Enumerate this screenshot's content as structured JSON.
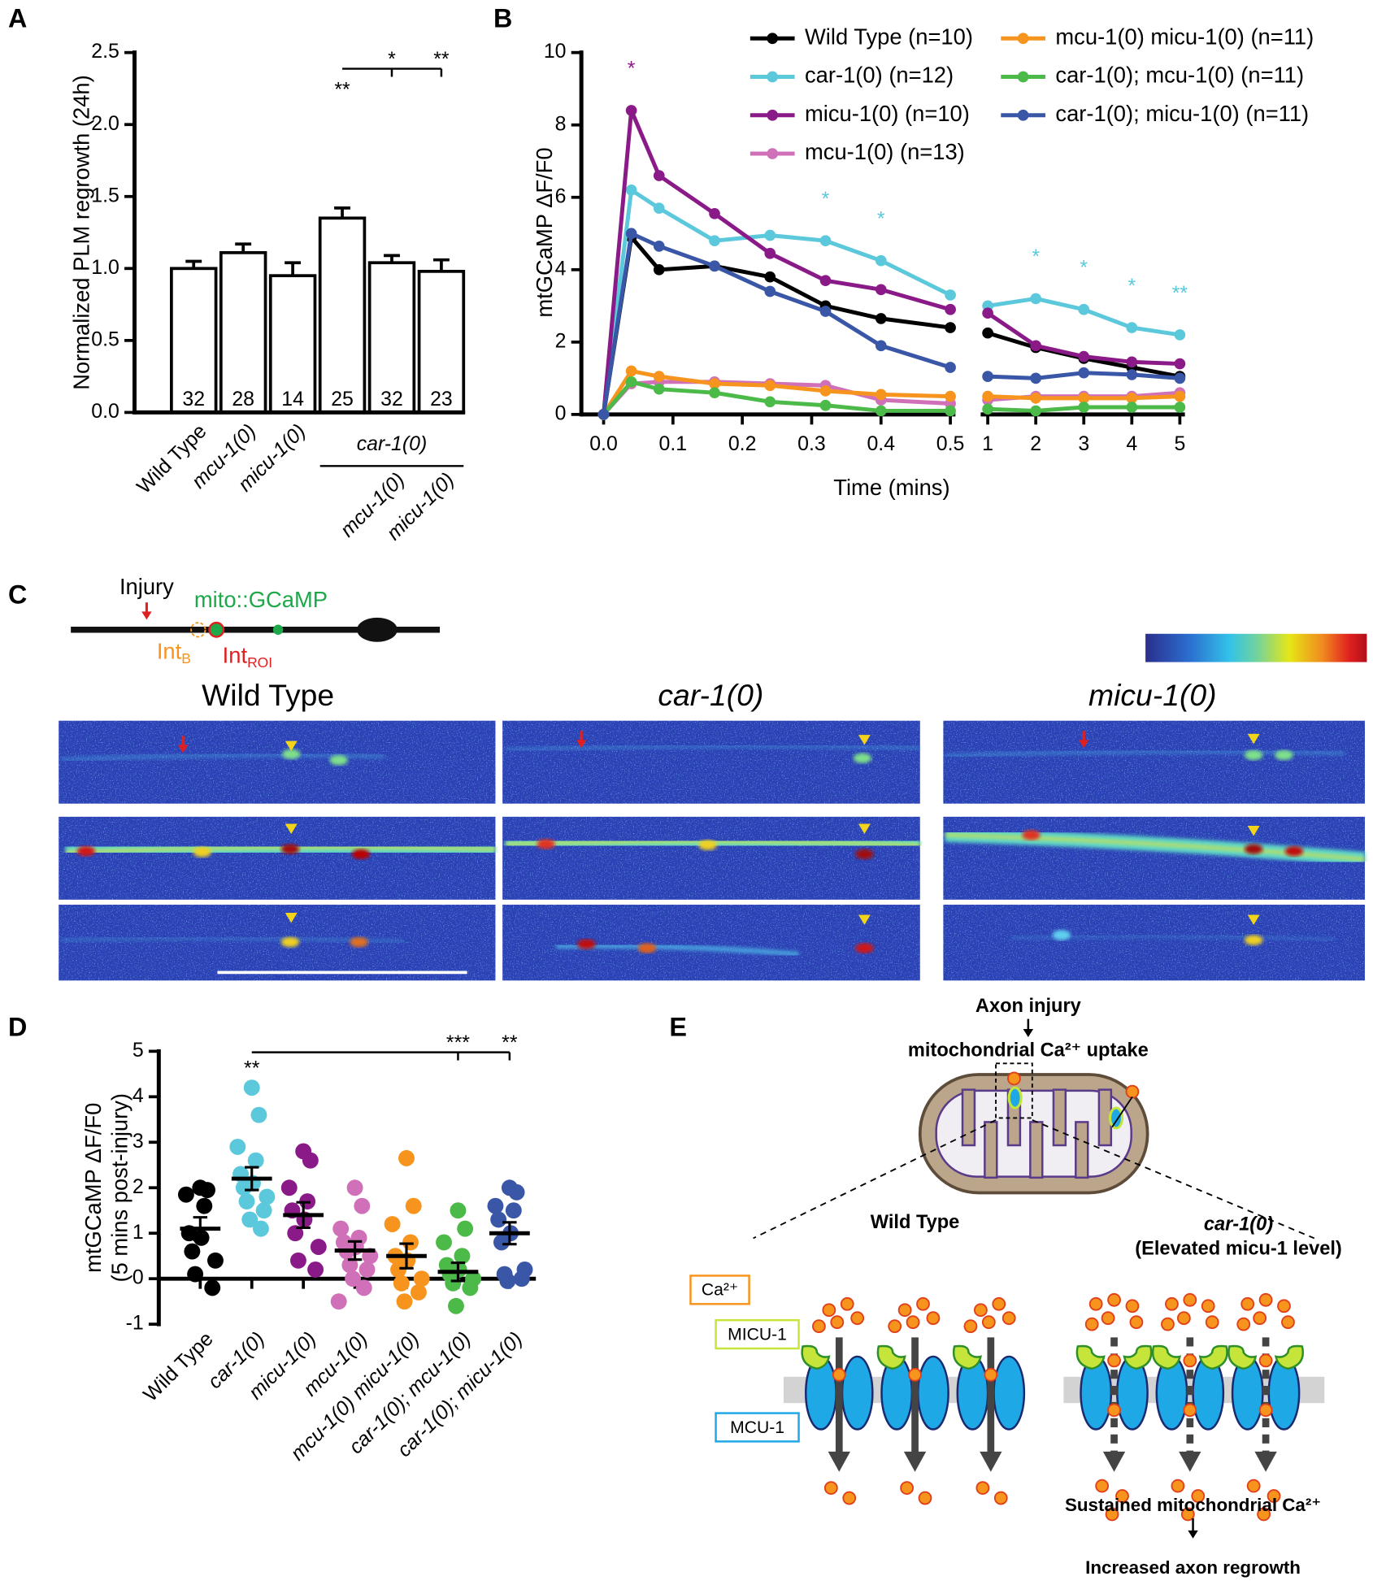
{
  "panel_labels": [
    "A",
    "B",
    "C",
    "D",
    "E"
  ],
  "chart_data": [
    {
      "type": "bar",
      "ylabel": "Normalized PLM regrowth (24h)",
      "categories": [
        "Wild Type",
        "mcu-1(0)",
        "micu-1(0)",
        null,
        "mcu-1(0)",
        "micu-1(0)"
      ],
      "group_label": "car-1(0)",
      "values": [
        1.0,
        1.11,
        0.95,
        1.35,
        1.04,
        0.98
      ],
      "errors": [
        0.05,
        0.06,
        0.09,
        0.07,
        0.05,
        0.08
      ],
      "counts": [
        32,
        28,
        14,
        25,
        32,
        23
      ],
      "stars": [
        null,
        null,
        null,
        "**",
        null,
        null
      ],
      "bracket_stars": [
        null,
        null,
        null,
        null,
        "*",
        "**"
      ],
      "color": "#ffffff",
      "ylim": [
        0,
        2.5
      ],
      "yticks": [
        {
          "value": 0,
          "label": "0.0"
        },
        0.5,
        {
          "value": 1,
          "label": "1.0"
        },
        1.5,
        {
          "value": 2,
          "label": "2.0"
        },
        2.5
      ]
    },
    {
      "type": "line",
      "xlabel": "Time (mins)",
      "ylabel": "mtGCaMP ΔF/F0",
      "x": [
        0,
        0.04,
        0.08,
        0.16,
        0.24,
        0.32,
        0.4,
        0.5,
        1,
        2,
        3,
        4,
        5
      ],
      "xlim": [
        0,
        0.5
      ],
      "x2lim": [
        1,
        5
      ],
      "xticks": [
        {
          "value": 0,
          "label": "0.0"
        },
        0.1,
        0.2,
        0.3,
        0.4,
        0.5,
        1,
        2,
        3,
        4,
        5
      ],
      "ylim": [
        0,
        10
      ],
      "yticks": [
        0,
        2,
        4,
        6,
        8,
        10
      ],
      "series": [
        {
          "name": "Wild Type (n=10)",
          "color": "#000000",
          "values": [
            0,
            4.9,
            4.0,
            4.1,
            3.8,
            3.0,
            2.65,
            2.4,
            2.25,
            1.85,
            1.55,
            1.3,
            1.05
          ]
        },
        {
          "name": "car-1(0) (n=12)",
          "color": "#5bc8dc",
          "values": [
            0,
            6.2,
            5.7,
            4.8,
            4.95,
            4.8,
            4.25,
            3.3,
            3.0,
            3.2,
            2.9,
            2.4,
            2.2
          ],
          "stars": [
            null,
            null,
            null,
            null,
            null,
            "*",
            "*",
            null,
            null,
            "*",
            "*",
            "*",
            "**"
          ]
        },
        {
          "name": "micu-1(0) (n=10)",
          "color": "#8b1a89",
          "values": [
            0,
            8.4,
            6.6,
            5.55,
            4.45,
            3.7,
            3.45,
            2.9,
            2.8,
            1.9,
            1.6,
            1.45,
            1.4
          ],
          "stars": [
            null,
            "*",
            null,
            null,
            null,
            null,
            null,
            null,
            null,
            null,
            null,
            null,
            null
          ]
        },
        {
          "name": "mcu-1(0) (n=13)",
          "color": "#d070b8",
          "values": [
            0,
            0.85,
            0.9,
            0.9,
            0.85,
            0.8,
            0.4,
            0.3,
            0.4,
            0.5,
            0.5,
            0.5,
            0.6
          ]
        },
        {
          "name": "mcu-1(0) micu-1(0) (n=11)",
          "color": "#f7941d",
          "values": [
            0,
            1.2,
            1.05,
            0.85,
            0.8,
            0.65,
            0.55,
            0.5,
            0.5,
            0.45,
            0.45,
            0.45,
            0.5
          ]
        },
        {
          "name": "car-1(0); mcu-1(0) (n=11)",
          "color": "#4cba49",
          "values": [
            0,
            0.9,
            0.7,
            0.6,
            0.35,
            0.25,
            0.1,
            0.1,
            0.15,
            0.1,
            0.2,
            0.2,
            0.2
          ]
        },
        {
          "name": "car-1(0); micu-1(0) (n=11)",
          "color": "#3a57a7",
          "values": [
            0,
            5.0,
            4.65,
            4.1,
            3.4,
            2.85,
            1.9,
            1.3,
            1.05,
            1.0,
            1.15,
            1.1,
            1.0
          ]
        }
      ]
    },
    {
      "type": "strip",
      "ylabel": "mtGCaMP ΔF/F0",
      "ylabel_note": "(5 mins post-injury)",
      "categories": [
        "Wild Type",
        "car-1(0)",
        "micu-1(0)",
        "mcu-1(0)",
        "mcu-1(0) micu-1(0)",
        "car-1(0); mcu-1(0)",
        "car-1(0); micu-1(0)"
      ],
      "colors": [
        "#000000",
        "#5bc8dc",
        "#8b1a89",
        "#d070b8",
        "#f7941d",
        "#4cba49",
        "#3a57a7"
      ],
      "points": [
        [
          2.0,
          1.95,
          1.85,
          1.6,
          1.0,
          0.9,
          0.6,
          0.4,
          0.1,
          -0.2
        ],
        [
          4.2,
          3.6,
          2.9,
          2.6,
          2.3,
          2.1,
          2.0,
          1.8,
          1.7,
          1.5,
          1.3,
          1.1
        ],
        [
          2.8,
          2.6,
          2.0,
          1.7,
          1.5,
          1.3,
          1.0,
          0.7,
          0.4,
          0.2
        ],
        [
          2.0,
          1.6,
          1.1,
          0.9,
          0.8,
          0.7,
          0.6,
          0.5,
          0.3,
          0.2,
          0,
          -0.2,
          -0.5
        ],
        [
          2.65,
          1.6,
          1.2,
          0.8,
          0.5,
          0.4,
          0.2,
          0,
          -0.1,
          -0.3,
          -0.5
        ],
        [
          1.5,
          1.1,
          0.8,
          0.5,
          0.3,
          0.2,
          0.1,
          0,
          -0.1,
          -0.2,
          -0.6
        ],
        [
          2.0,
          1.9,
          1.6,
          1.5,
          1.3,
          1.0,
          0.8,
          0.2,
          0.1,
          0,
          -0.05
        ]
      ],
      "means": [
        1.1,
        2.2,
        1.4,
        0.62,
        0.5,
        0.15,
        1.0
      ],
      "errors": [
        0.25,
        0.25,
        0.28,
        0.2,
        0.27,
        0.2,
        0.24
      ],
      "stars": [
        null,
        "**",
        null,
        null,
        null,
        null,
        null
      ],
      "bracket_stars": [
        null,
        null,
        null,
        null,
        null,
        "***",
        "**"
      ],
      "ylim": [
        -1,
        5
      ],
      "yticks": [
        -1,
        0,
        1,
        2,
        3,
        4,
        5
      ]
    }
  ],
  "panel_c": {
    "injury": "Injury",
    "reporter": "mito::GCaMP",
    "int_b": {
      "base": "Int",
      "sub": "B"
    },
    "int_roi": {
      "base": "Int",
      "sub": "ROI"
    },
    "columns": [
      "Wild Type",
      "car-1(0)",
      "micu-1(0)"
    ]
  },
  "panel_e": {
    "trigger": "Axon injury",
    "process": "mitochondrial Ca²⁺ uptake",
    "left_condition": "Wild Type",
    "right_condition": "car-1(0)",
    "right_note": "(Elevated micu-1 level)",
    "legend": [
      "Ca²⁺",
      "MICU-1",
      "MCU-1"
    ],
    "outcome": "Sustained mitochondrial Ca²⁺",
    "result": "Increased axon regrowth"
  }
}
